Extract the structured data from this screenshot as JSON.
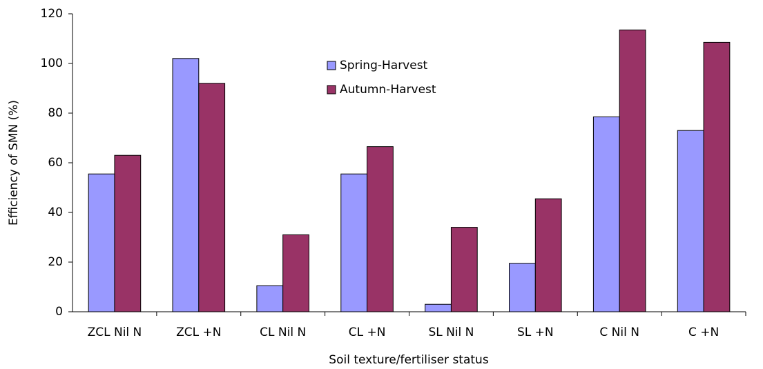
{
  "chart_data": {
    "type": "bar",
    "x_label": "Soil texture/fertiliser status",
    "y_label": "Efficiency of SMN (%)",
    "categories": [
      "ZCL Nil N",
      "ZCL +N",
      "CL Nil N",
      "CL +N",
      "SL Nil N",
      "SL +N",
      "C Nil N",
      "C +N"
    ],
    "series": [
      {
        "name": "Spring-Harvest",
        "color": "#9999ff",
        "values": [
          55.5,
          102,
          10.5,
          55.5,
          3,
          19.5,
          78.5,
          73
        ]
      },
      {
        "name": "Autumn-Harvest",
        "color": "#993366",
        "values": [
          63,
          92,
          31,
          66.5,
          34,
          45.5,
          113.5,
          108.5
        ]
      }
    ],
    "ylim": [
      0,
      120
    ],
    "yticks": [
      0,
      20,
      40,
      60,
      80,
      100,
      120
    ],
    "grid": false,
    "legend": "top"
  }
}
